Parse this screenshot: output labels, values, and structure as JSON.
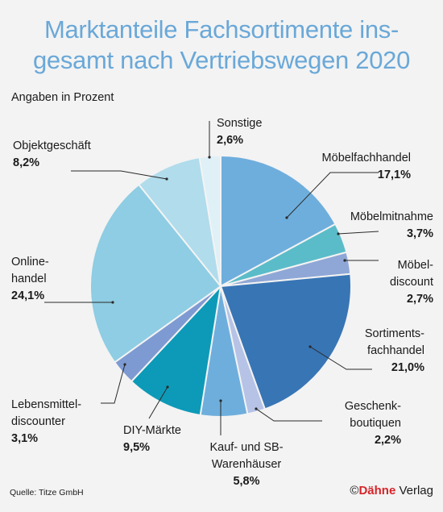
{
  "title_line1": "Marktanteile Fachsortimente ins-",
  "title_line2": "gesamt nach Vertriebswegen 2020",
  "subtitle": "Angaben in Prozent",
  "source": "Quelle: Titze GmbH",
  "logo": {
    "copyright": "©",
    "brand": "Dähne",
    "suffix": " Verlag"
  },
  "chart_data": {
    "type": "pie",
    "title": "Marktanteile Fachsortimente insgesamt nach Vertriebswegen 2020",
    "unit": "Angaben in Prozent",
    "start": "12 o'clock, clockwise",
    "slices": [
      {
        "label": [
          "Möbelfachhandel"
        ],
        "value": 17.1,
        "value_text": "17,1%",
        "color": "#6eaedd"
      },
      {
        "label": [
          "Möbelmitnahme"
        ],
        "value": 3.7,
        "value_text": "3,7%",
        "color": "#5bbcc9"
      },
      {
        "label": [
          "Möbel-",
          "discount"
        ],
        "value": 2.7,
        "value_text": "2,7%",
        "color": "#8ea7d6"
      },
      {
        "label": [
          "Sortiments-",
          "fachhandel"
        ],
        "value": 21.0,
        "value_text": "21,0%",
        "color": "#3875b5"
      },
      {
        "label": [
          "Geschenk-",
          "boutiquen"
        ],
        "value": 2.2,
        "value_text": "2,2%",
        "color": "#b6c3e6"
      },
      {
        "label": [
          "Kauf- und SB-",
          "Warenhäuser"
        ],
        "value": 5.8,
        "value_text": "5,8%",
        "color": "#6eaedd"
      },
      {
        "label": [
          "DIY-Märkte"
        ],
        "value": 9.5,
        "value_text": "9,5%",
        "color": "#0d9ab8"
      },
      {
        "label": [
          "Lebensmittel-",
          "discounter"
        ],
        "value": 3.1,
        "value_text": "3,1%",
        "color": "#7e9ad2"
      },
      {
        "label": [
          "Online-",
          "handel"
        ],
        "value": 24.1,
        "value_text": "24,1%",
        "color": "#8ecde3"
      },
      {
        "label": [
          "Objektgeschäft"
        ],
        "value": 8.2,
        "value_text": "8,2%",
        "color": "#b0dcec"
      },
      {
        "label": [
          "Sonstige"
        ],
        "value": 2.6,
        "value_text": "2,6%",
        "color": "#dff0f7"
      }
    ]
  }
}
